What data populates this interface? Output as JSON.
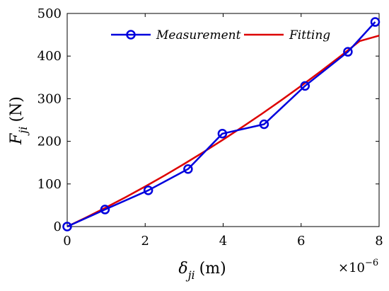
{
  "chart_data": {
    "type": "line",
    "xlim": [
      0,
      8e-06
    ],
    "ylim": [
      0,
      500
    ],
    "x_tick_values": [
      0,
      2e-06,
      4e-06,
      6e-06,
      8e-06
    ],
    "x_tick_labels": [
      "0",
      "2",
      "4",
      "6",
      "8"
    ],
    "y_tick_values": [
      0,
      100,
      200,
      300,
      400,
      500
    ],
    "y_tick_labels": [
      "0",
      "100",
      "200",
      "300",
      "400",
      "500"
    ],
    "x_exponent_label": "×10",
    "x_exponent_power": "−6",
    "xlabel": {
      "symbol": "δ",
      "subscript": "ji",
      "unit": "(m)"
    },
    "ylabel": {
      "symbol": "F",
      "subscript": "ji",
      "unit": "(N)"
    },
    "grid": false,
    "legend_position": "top",
    "series": [
      {
        "name": "Measurement",
        "color": "#0000dd",
        "marker": "circle",
        "x": [
          0,
          9.7e-07,
          2.08e-06,
          3.1e-06,
          3.98e-06,
          5.05e-06,
          6.1e-06,
          7.2e-06,
          7.9e-06
        ],
        "y": [
          0,
          40,
          85,
          135,
          218,
          240,
          330,
          410,
          480
        ]
      },
      {
        "name": "Fitting",
        "color": "#dd0000",
        "marker": "none",
        "x": [
          0,
          5e-07,
          1e-06,
          1.5e-06,
          2e-06,
          2.5e-06,
          3e-06,
          3.5e-06,
          4e-06,
          4.5e-06,
          5e-06,
          5.5e-06,
          6e-06,
          6.5e-06,
          7e-06,
          7.5e-06,
          8e-06
        ],
        "y": [
          0,
          22,
          45,
          69,
          94,
          120,
          147,
          175,
          204,
          234,
          265,
          297,
          330,
          364,
          399,
          435,
          448
        ]
      }
    ]
  }
}
